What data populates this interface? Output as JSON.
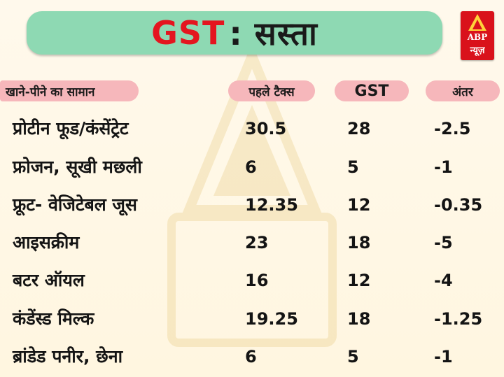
{
  "title": {
    "highlight": "GST",
    "rest": ": सस्ता"
  },
  "logo": {
    "brand": "ABP",
    "brand_sub": "न्यूज़",
    "color": "#d9121b"
  },
  "colors": {
    "title_bar": "#8ed9b3",
    "title_accent": "#e4151f",
    "header_pill": "#f6b7bb"
  },
  "chart_data": {
    "type": "table",
    "columns": [
      "खाने-पीने का सामान",
      "पहले टैक्स",
      "GST",
      "अंतर"
    ],
    "rows": [
      {
        "item": "प्रोटीन फूड/कंसेंट्रेट",
        "before": "30.5",
        "gst": "28",
        "diff": "-2.5"
      },
      {
        "item": "फ्रोजन, सूखी मछली",
        "before": "6",
        "gst": "5",
        "diff": "-1"
      },
      {
        "item": "फ्रूट- वेजिटेबल जूस",
        "before": "12.35",
        "gst": "12",
        "diff": "-0.35"
      },
      {
        "item": "आइसक्रीम",
        "before": "23",
        "gst": "18",
        "diff": "-5"
      },
      {
        "item": "बटर ऑयल",
        "before": "16",
        "gst": "12",
        "diff": "-4"
      },
      {
        "item": "कंडेंस्ड मिल्क",
        "before": "19.25",
        "gst": "18",
        "diff": "-1.25"
      },
      {
        "item": "ब्रांडेड पनीर, छेना",
        "before": "6",
        "gst": "5",
        "diff": "-1"
      }
    ]
  }
}
